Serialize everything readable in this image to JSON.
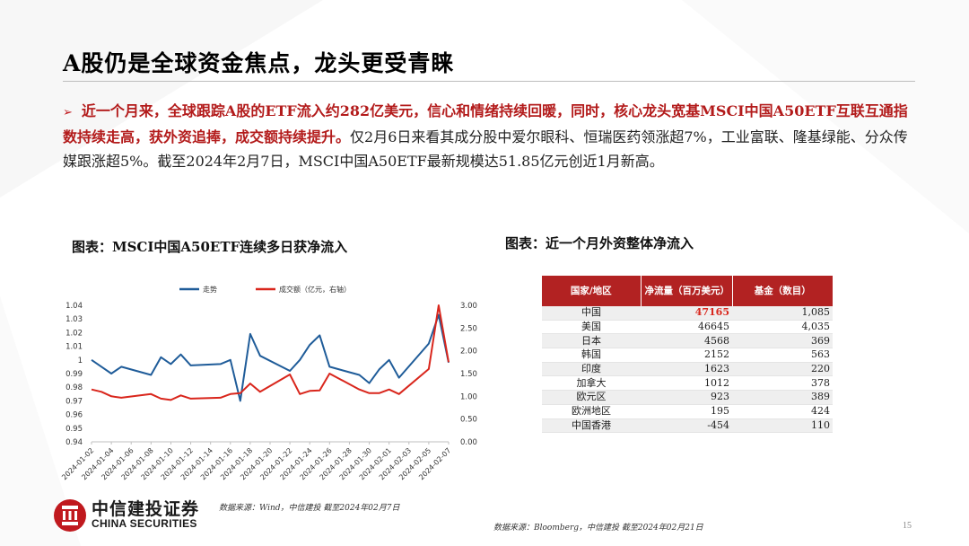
{
  "slide": {
    "title": "A股仍是全球资金焦点，龙头更受青睐",
    "bullet_marker": "➢",
    "paragraph": {
      "highlight": "近一个月来，全球跟踪A股的ETF流入约282亿美元，信心和情绪持续回暖，同时，核心龙头宽基MSCI中国A50ETF互联互通指数持续走高，获外资追捧，成交额持续提升。",
      "body": "仅2月6日来看其成分股中爱尔眼科、恒瑞医药领涨超7%，工业富联、隆基绿能、分众传媒跟涨超5%。截至2024年2月7日，MSCI中国A50ETF最新规模达51.85亿元创近1月新高。"
    },
    "page_number": "15"
  },
  "left_figure": {
    "title": "图表：MSCI中国A50ETF连续多日获净流入",
    "source": "数据来源：Wind，中信建投 截至2024年02月7日"
  },
  "right_figure": {
    "title": "图表：近一个月外资整体净流入",
    "source": "数据来源：Bloomberg，中信建投 截至2024年02月21日"
  },
  "logo": {
    "cn": "中信建投证券",
    "en": "CHINA SECURITIES"
  },
  "colors": {
    "brand_red": "#c0191e",
    "line_blue": "#1f5c99",
    "line_red": "#d9261c",
    "table_header": "#b22222"
  },
  "table": {
    "headers": [
      "国家/地区",
      "净流量（百万美元）",
      "基金（数目）"
    ],
    "rows": [
      [
        "中国",
        "47165",
        "1,085"
      ],
      [
        "美国",
        "46645",
        "4,035"
      ],
      [
        "日本",
        "4568",
        "369"
      ],
      [
        "韩国",
        "2152",
        "563"
      ],
      [
        "印度",
        "1623",
        "220"
      ],
      [
        "加拿大",
        "1012",
        "378"
      ],
      [
        "欧元区",
        "923",
        "389"
      ],
      [
        "欧洲地区",
        "195",
        "424"
      ],
      [
        "中国香港",
        "-454",
        "110"
      ]
    ]
  },
  "chart_data": {
    "type": "line",
    "legend": [
      "走势",
      "成交额（亿元，右轴）"
    ],
    "legend_position": "top",
    "grid": false,
    "x_ticks": [
      "2024-01-02",
      "2024-01-04",
      "2024-01-06",
      "2024-01-08",
      "2024-01-10",
      "2024-01-12",
      "2024-01-14",
      "2024-01-16",
      "2024-01-18",
      "2024-01-20",
      "2024-01-22",
      "2024-01-24",
      "2024-01-26",
      "2024-01-28",
      "2024-01-30",
      "2024-02-01",
      "2024-02-03",
      "2024-02-05",
      "2024-02-07"
    ],
    "y_left": {
      "ticks": [
        "0.94",
        "0.95",
        "0.96",
        "0.97",
        "0.98",
        "0.99",
        "1",
        "1.01",
        "1.02",
        "1.03",
        "1.04"
      ],
      "range": [
        0.94,
        1.04
      ]
    },
    "y_right": {
      "ticks": [
        "0.00",
        "0.50",
        "1.00",
        "1.50",
        "2.00",
        "2.50",
        "3.00"
      ],
      "range": [
        0,
        3.0
      ]
    },
    "series": [
      {
        "name": "走势",
        "axis": "left",
        "color": "#1f5c99",
        "x": [
          "2024-01-02",
          "2024-01-03",
          "2024-01-04",
          "2024-01-05",
          "2024-01-08",
          "2024-01-09",
          "2024-01-10",
          "2024-01-11",
          "2024-01-12",
          "2024-01-15",
          "2024-01-16",
          "2024-01-17",
          "2024-01-18",
          "2024-01-19",
          "2024-01-22",
          "2024-01-23",
          "2024-01-24",
          "2024-01-25",
          "2024-01-26",
          "2024-01-29",
          "2024-01-30",
          "2024-01-31",
          "2024-02-01",
          "2024-02-02",
          "2024-02-05",
          "2024-02-06",
          "2024-02-07"
        ],
        "y": [
          1.0,
          0.995,
          0.99,
          0.995,
          0.989,
          1.002,
          0.997,
          1.004,
          0.996,
          0.997,
          1.0,
          0.97,
          1.019,
          1.003,
          0.992,
          1.0,
          1.011,
          1.018,
          0.995,
          0.989,
          0.983,
          0.993,
          1.0,
          0.987,
          1.012,
          1.033,
          0.998
        ]
      },
      {
        "name": "成交额（亿元，右轴）",
        "axis": "right",
        "color": "#d9261c",
        "x": [
          "2024-01-02",
          "2024-01-03",
          "2024-01-04",
          "2024-01-05",
          "2024-01-08",
          "2024-01-09",
          "2024-01-10",
          "2024-01-11",
          "2024-01-12",
          "2024-01-15",
          "2024-01-16",
          "2024-01-17",
          "2024-01-18",
          "2024-01-19",
          "2024-01-22",
          "2024-01-23",
          "2024-01-24",
          "2024-01-25",
          "2024-01-26",
          "2024-01-29",
          "2024-01-30",
          "2024-01-31",
          "2024-02-01",
          "2024-02-02",
          "2024-02-05",
          "2024-02-06",
          "2024-02-07"
        ],
        "y": [
          1.15,
          1.1,
          1.0,
          0.97,
          1.05,
          0.95,
          0.92,
          1.02,
          0.95,
          0.97,
          1.05,
          1.07,
          1.28,
          1.1,
          1.48,
          1.05,
          1.12,
          1.13,
          1.5,
          1.15,
          1.07,
          1.07,
          1.15,
          1.05,
          1.6,
          3.0,
          1.75
        ]
      }
    ]
  }
}
